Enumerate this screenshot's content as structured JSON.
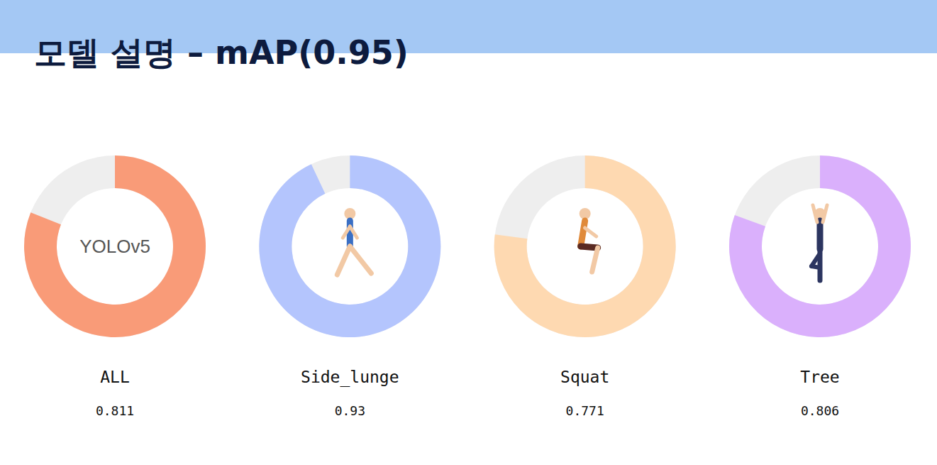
{
  "chart_data": {
    "type": "donut",
    "title": "모델 설명 – mAP(0.95)",
    "categories": [
      "ALL",
      "Side_lunge",
      "Squat",
      "Tree"
    ],
    "values": [
      0.811,
      0.93,
      0.771,
      0.806
    ],
    "colors": [
      "#f99b78",
      "#b4c5fd",
      "#fed9b1",
      "#dab0fc"
    ],
    "ylim": [
      0,
      1
    ],
    "data_labels": true,
    "annotations": [
      "YOLOv5"
    ]
  }
}
